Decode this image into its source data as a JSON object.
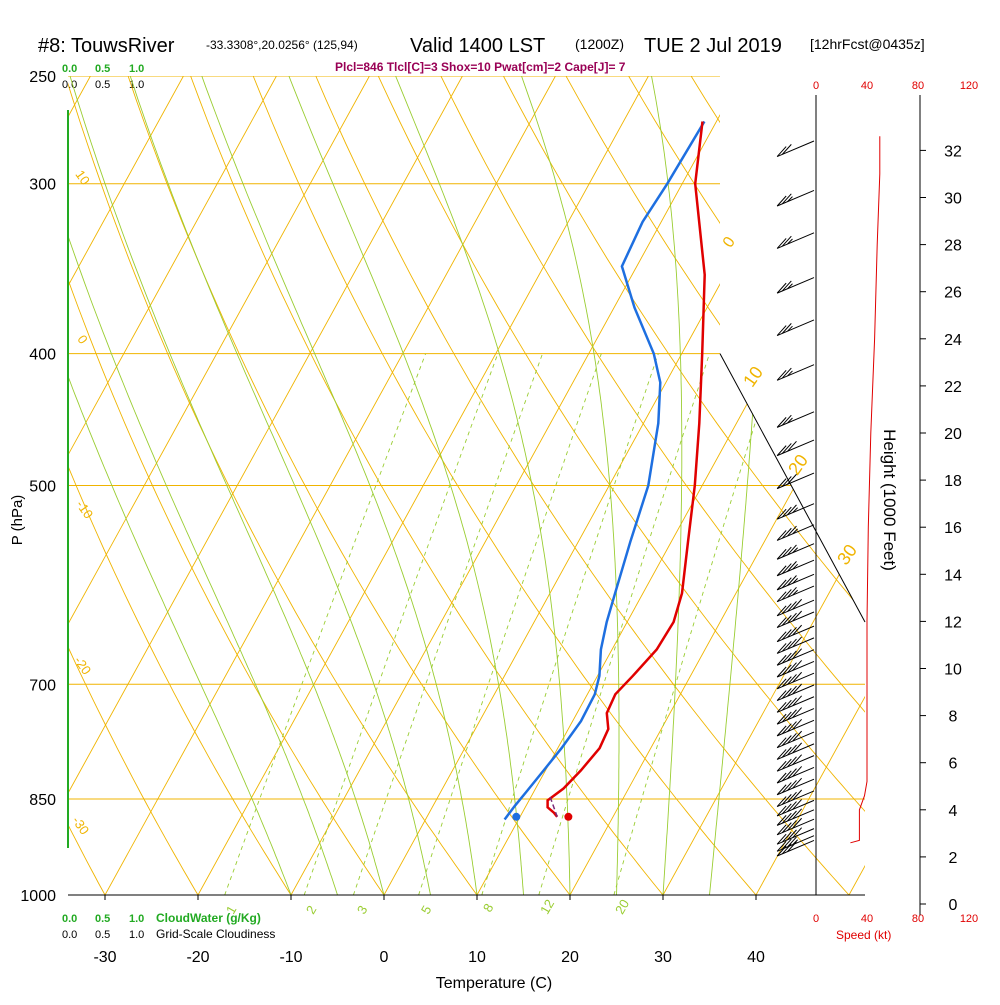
{
  "header": {
    "station": "#8: TouwsRiver",
    "coords": "-33.3308°,20.0256° (125,94)",
    "valid": "Valid 1400 LST",
    "utc": "(1200Z)",
    "date": "TUE 2 Jul 2019",
    "forecast": "[12hrFcst@0435z]",
    "indices": "Plcl=846 Tlcl[C]=3 Shox=10 Pwat[cm]=2 Cape[J]= 7"
  },
  "colors": {
    "isotherm": "#f0b400",
    "dry_adiabat": "#f0b400",
    "moist_adiabat": "#9acd32",
    "mixing_ratio": "#9acd32",
    "temperature": "#e00000",
    "dewpoint": "#1e6fe0",
    "cloud_water": "#22aa22",
    "wind_speed": "#e00000",
    "text": "#000000",
    "indices": "#990055"
  },
  "labels": {
    "pressure_axis": "P (hPa)",
    "temperature_axis": "Temperature (C)",
    "height_axis": "Height (1000 Feet)",
    "cloud_water": "CloudWater (g/Kg)",
    "cloudiness": "Grid-Scale Cloudiness",
    "speed": "Speed (kt)"
  },
  "scale_top_green": [
    "0.0",
    "0.5",
    "1.0"
  ],
  "scale_top_black": [
    "0.0",
    "0.5",
    "1.0"
  ],
  "scale_bottom_green": [
    "0.0",
    "0.5",
    "1.0"
  ],
  "scale_bottom_black": [
    "0.0",
    "0.5",
    "1.0"
  ],
  "speed_ticks": [
    "0",
    "40",
    "80",
    "120"
  ],
  "chart_data": {
    "type": "line",
    "x_range": [
      -35,
      52
    ],
    "pressure_range": [
      250,
      1000
    ],
    "temperature_ticks": [
      -30,
      -20,
      -10,
      0,
      10,
      20,
      30,
      40
    ],
    "pressure_ticks": [
      250,
      300,
      400,
      500,
      700,
      850,
      1000
    ],
    "height_ticks": [
      0,
      2,
      4,
      6,
      8,
      10,
      12,
      14,
      16,
      18,
      20,
      22,
      24,
      26,
      28,
      30,
      32
    ],
    "height_range": [
      -0.2,
      33.5
    ],
    "isotherms": [
      -110,
      -100,
      -90,
      -80,
      -70,
      -60,
      -50,
      -40,
      -30,
      -20,
      -10,
      0,
      10,
      20,
      30,
      40,
      50
    ],
    "dry_adiabats": [
      -30,
      -20,
      -10,
      0,
      10,
      20,
      30,
      40,
      50,
      60,
      70,
      80,
      90,
      100,
      110,
      120,
      130,
      140,
      150,
      160
    ],
    "isotherm_labels": [
      "0",
      "10",
      "20",
      "30"
    ],
    "dry_adiabat_labels": [
      "10",
      "0",
      "-10",
      "-20",
      "-30"
    ],
    "mixing_ratio_labels": [
      "1",
      "2",
      "3",
      "5",
      "8",
      "12",
      "20"
    ],
    "temperature": {
      "p": [
        876,
        870,
        862,
        852,
        835,
        810,
        780,
        755,
        735,
        712,
        690,
        660,
        630,
        600,
        550,
        500,
        450,
        400,
        350,
        300,
        270
      ],
      "t": [
        14.0,
        13.4,
        12.4,
        12.0,
        13.0,
        13.8,
        14.5,
        14.3,
        13.2,
        13.0,
        13.8,
        14.8,
        15.0,
        14.2,
        11.8,
        9.2,
        6.0,
        2.2,
        -2.2,
        -8.6,
        -11.5
      ]
    },
    "dewpoint": {
      "p": [
        880,
        860,
        840,
        810,
        780,
        745,
        712,
        690,
        660,
        630,
        600,
        550,
        500,
        450,
        420,
        400,
        370,
        345,
        320,
        300,
        270
      ],
      "td": [
        8.5,
        8.8,
        9.2,
        9.8,
        10.4,
        10.9,
        10.8,
        10.2,
        8.8,
        7.8,
        7.0,
        5.6,
        4.2,
        1.6,
        -0.6,
        -3.0,
        -7.8,
        -11.6,
        -12.0,
        -11.6,
        -11.3
      ]
    },
    "surface": {
      "p": 876,
      "t": 15.2,
      "td": 9.6
    },
    "parcel": {
      "p": [
        876,
        846
      ],
      "t": [
        14.0,
        12.0
      ]
    },
    "wind_speed_profile": {
      "h": [
        2.6,
        2.7,
        3.0,
        4.0,
        4.6,
        5.2,
        6.0,
        8.0,
        12.0,
        16.0,
        20.0,
        24.0,
        28.0,
        31.0,
        32.6
      ],
      "kt": [
        27,
        34,
        34,
        34,
        38,
        40,
        40,
        40,
        40,
        41,
        43,
        46,
        48,
        50,
        50
      ]
    },
    "wind_barbs": {
      "h": [
        32.4,
        30.3,
        28.5,
        26.6,
        24.8,
        22.9,
        20.9,
        19.7,
        18.3,
        17.0,
        16.1,
        15.3,
        14.6,
        14.0,
        13.5,
        12.9,
        12.4,
        11.8,
        11.3,
        10.8,
        10.3,
        9.8,
        9.3,
        8.8,
        8.3,
        7.8,
        7.3,
        6.8,
        6.3,
        5.8,
        5.3,
        4.8,
        4.4,
        4.0,
        3.6,
        3.2,
        2.9,
        2.7
      ],
      "kt": [
        20,
        25,
        25,
        25,
        25,
        25,
        25,
        30,
        30,
        35,
        35,
        35,
        35,
        35,
        35,
        40,
        40,
        40,
        40,
        40,
        40,
        40,
        40,
        40,
        40,
        40,
        40,
        40,
        40,
        40,
        40,
        40,
        40,
        40,
        40,
        40,
        35,
        30
      ]
    }
  }
}
